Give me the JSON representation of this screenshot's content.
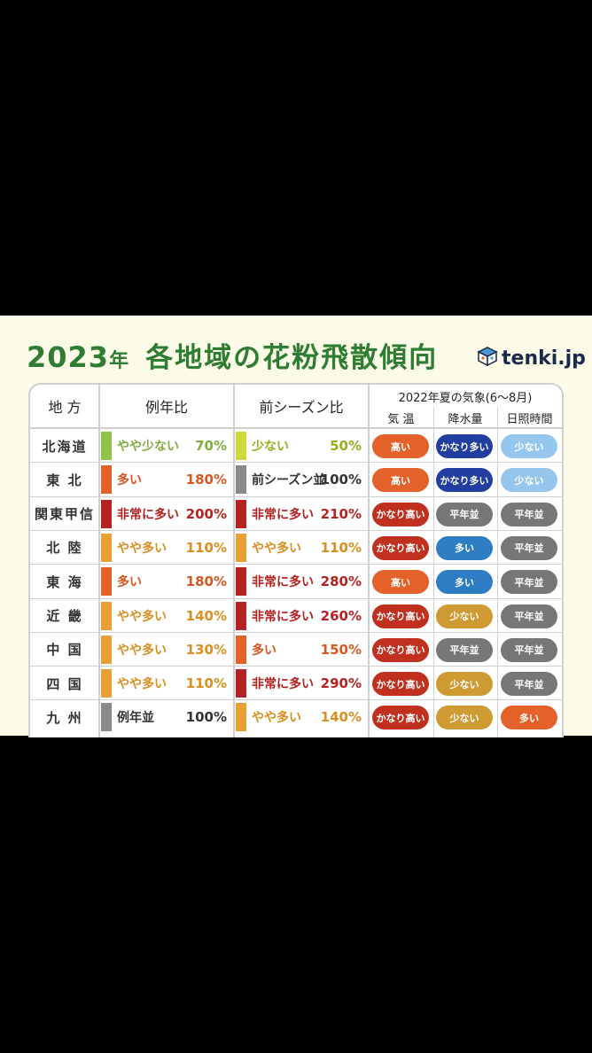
{
  "title": {
    "year": "2023",
    "nen": "年",
    "main": "各地域の花粉飛散傾向"
  },
  "logo": {
    "text": "tenki.jp"
  },
  "headers": {
    "region": "地 方",
    "normal": "例年比",
    "previous": "前シーズン比",
    "weather_group": "2022年夏の気象(6〜8月)",
    "temp": "気 温",
    "rain": "降水量",
    "sun": "日照時間"
  },
  "colors": {
    "title_green": "#2e7d32",
    "bar_lightgreen": "#8fc34a",
    "bar_yellowgreen": "#c9dc3c",
    "bar_orange": "#e8a034",
    "bar_red_orange": "#e4622a",
    "bar_red": "#b52222",
    "bar_gray": "#8a8a8a",
    "pill_red": "#c1301f",
    "pill_orange": "#e4622a",
    "pill_gold": "#cf9a32",
    "pill_gray": "#777777",
    "pill_navy": "#223ea0",
    "pill_blue": "#2e7dc2",
    "pill_lightblue": "#94c6ee"
  },
  "rows": [
    {
      "region": "北海道",
      "normal": {
        "label": "やや少ない",
        "pct": "70%",
        "color": "#8fc34a",
        "text_color": "#7fae3c"
      },
      "prev": {
        "label": "少ない",
        "pct": "50%",
        "color": "#c9dc3c",
        "text_color": "#9aad1e"
      },
      "temp": {
        "label": "高い",
        "color": "#e4622a"
      },
      "rain": {
        "label": "かなり多い",
        "color": "#223ea0"
      },
      "sun": {
        "label": "少ない",
        "color": "#94c6ee"
      }
    },
    {
      "region": "東 北",
      "normal": {
        "label": "多い",
        "pct": "180%",
        "color": "#e4622a",
        "text_color": "#d9561f"
      },
      "prev": {
        "label": "前シーズン並",
        "pct": "100%",
        "color": "#8a8a8a",
        "text_color": "#333333"
      },
      "temp": {
        "label": "高い",
        "color": "#e4622a"
      },
      "rain": {
        "label": "かなり多い",
        "color": "#223ea0"
      },
      "sun": {
        "label": "少ない",
        "color": "#94c6ee"
      }
    },
    {
      "region": "関東甲信",
      "normal": {
        "label": "非常に多い",
        "pct": "200%",
        "color": "#b52222",
        "text_color": "#b52222"
      },
      "prev": {
        "label": "非常に多い",
        "pct": "210%",
        "color": "#b52222",
        "text_color": "#b52222"
      },
      "temp": {
        "label": "かなり高い",
        "color": "#c1301f"
      },
      "rain": {
        "label": "平年並",
        "color": "#777777"
      },
      "sun": {
        "label": "平年並",
        "color": "#777777"
      }
    },
    {
      "region": "北 陸",
      "normal": {
        "label": "やや多い",
        "pct": "110%",
        "color": "#e8a034",
        "text_color": "#d99020"
      },
      "prev": {
        "label": "やや多い",
        "pct": "110%",
        "color": "#e8a034",
        "text_color": "#d99020"
      },
      "temp": {
        "label": "かなり高い",
        "color": "#c1301f"
      },
      "rain": {
        "label": "多い",
        "color": "#2e7dc2"
      },
      "sun": {
        "label": "平年並",
        "color": "#777777"
      }
    },
    {
      "region": "東 海",
      "normal": {
        "label": "多い",
        "pct": "180%",
        "color": "#e4622a",
        "text_color": "#d9561f"
      },
      "prev": {
        "label": "非常に多い",
        "pct": "280%",
        "color": "#b52222",
        "text_color": "#b52222"
      },
      "temp": {
        "label": "高い",
        "color": "#e4622a"
      },
      "rain": {
        "label": "多い",
        "color": "#2e7dc2"
      },
      "sun": {
        "label": "平年並",
        "color": "#777777"
      }
    },
    {
      "region": "近 畿",
      "normal": {
        "label": "やや多い",
        "pct": "140%",
        "color": "#e8a034",
        "text_color": "#d99020"
      },
      "prev": {
        "label": "非常に多い",
        "pct": "260%",
        "color": "#b52222",
        "text_color": "#b52222"
      },
      "temp": {
        "label": "かなり高い",
        "color": "#c1301f"
      },
      "rain": {
        "label": "少ない",
        "color": "#cf9a32"
      },
      "sun": {
        "label": "平年並",
        "color": "#777777"
      }
    },
    {
      "region": "中 国",
      "normal": {
        "label": "やや多い",
        "pct": "130%",
        "color": "#e8a034",
        "text_color": "#d99020"
      },
      "prev": {
        "label": "多い",
        "pct": "150%",
        "color": "#e4622a",
        "text_color": "#d9561f"
      },
      "temp": {
        "label": "かなり高い",
        "color": "#c1301f"
      },
      "rain": {
        "label": "平年並",
        "color": "#777777"
      },
      "sun": {
        "label": "平年並",
        "color": "#777777"
      }
    },
    {
      "region": "四 国",
      "normal": {
        "label": "やや多い",
        "pct": "110%",
        "color": "#e8a034",
        "text_color": "#d99020"
      },
      "prev": {
        "label": "非常に多い",
        "pct": "290%",
        "color": "#b52222",
        "text_color": "#b52222"
      },
      "temp": {
        "label": "かなり高い",
        "color": "#c1301f"
      },
      "rain": {
        "label": "少ない",
        "color": "#cf9a32"
      },
      "sun": {
        "label": "平年並",
        "color": "#777777"
      }
    },
    {
      "region": "九 州",
      "normal": {
        "label": "例年並",
        "pct": "100%",
        "color": "#8a8a8a",
        "text_color": "#333333"
      },
      "prev": {
        "label": "やや多い",
        "pct": "140%",
        "color": "#e8a034",
        "text_color": "#d99020"
      },
      "temp": {
        "label": "かなり高い",
        "color": "#c1301f"
      },
      "rain": {
        "label": "少ない",
        "color": "#cf9a32"
      },
      "sun": {
        "label": "多い",
        "color": "#e4622a"
      }
    }
  ]
}
